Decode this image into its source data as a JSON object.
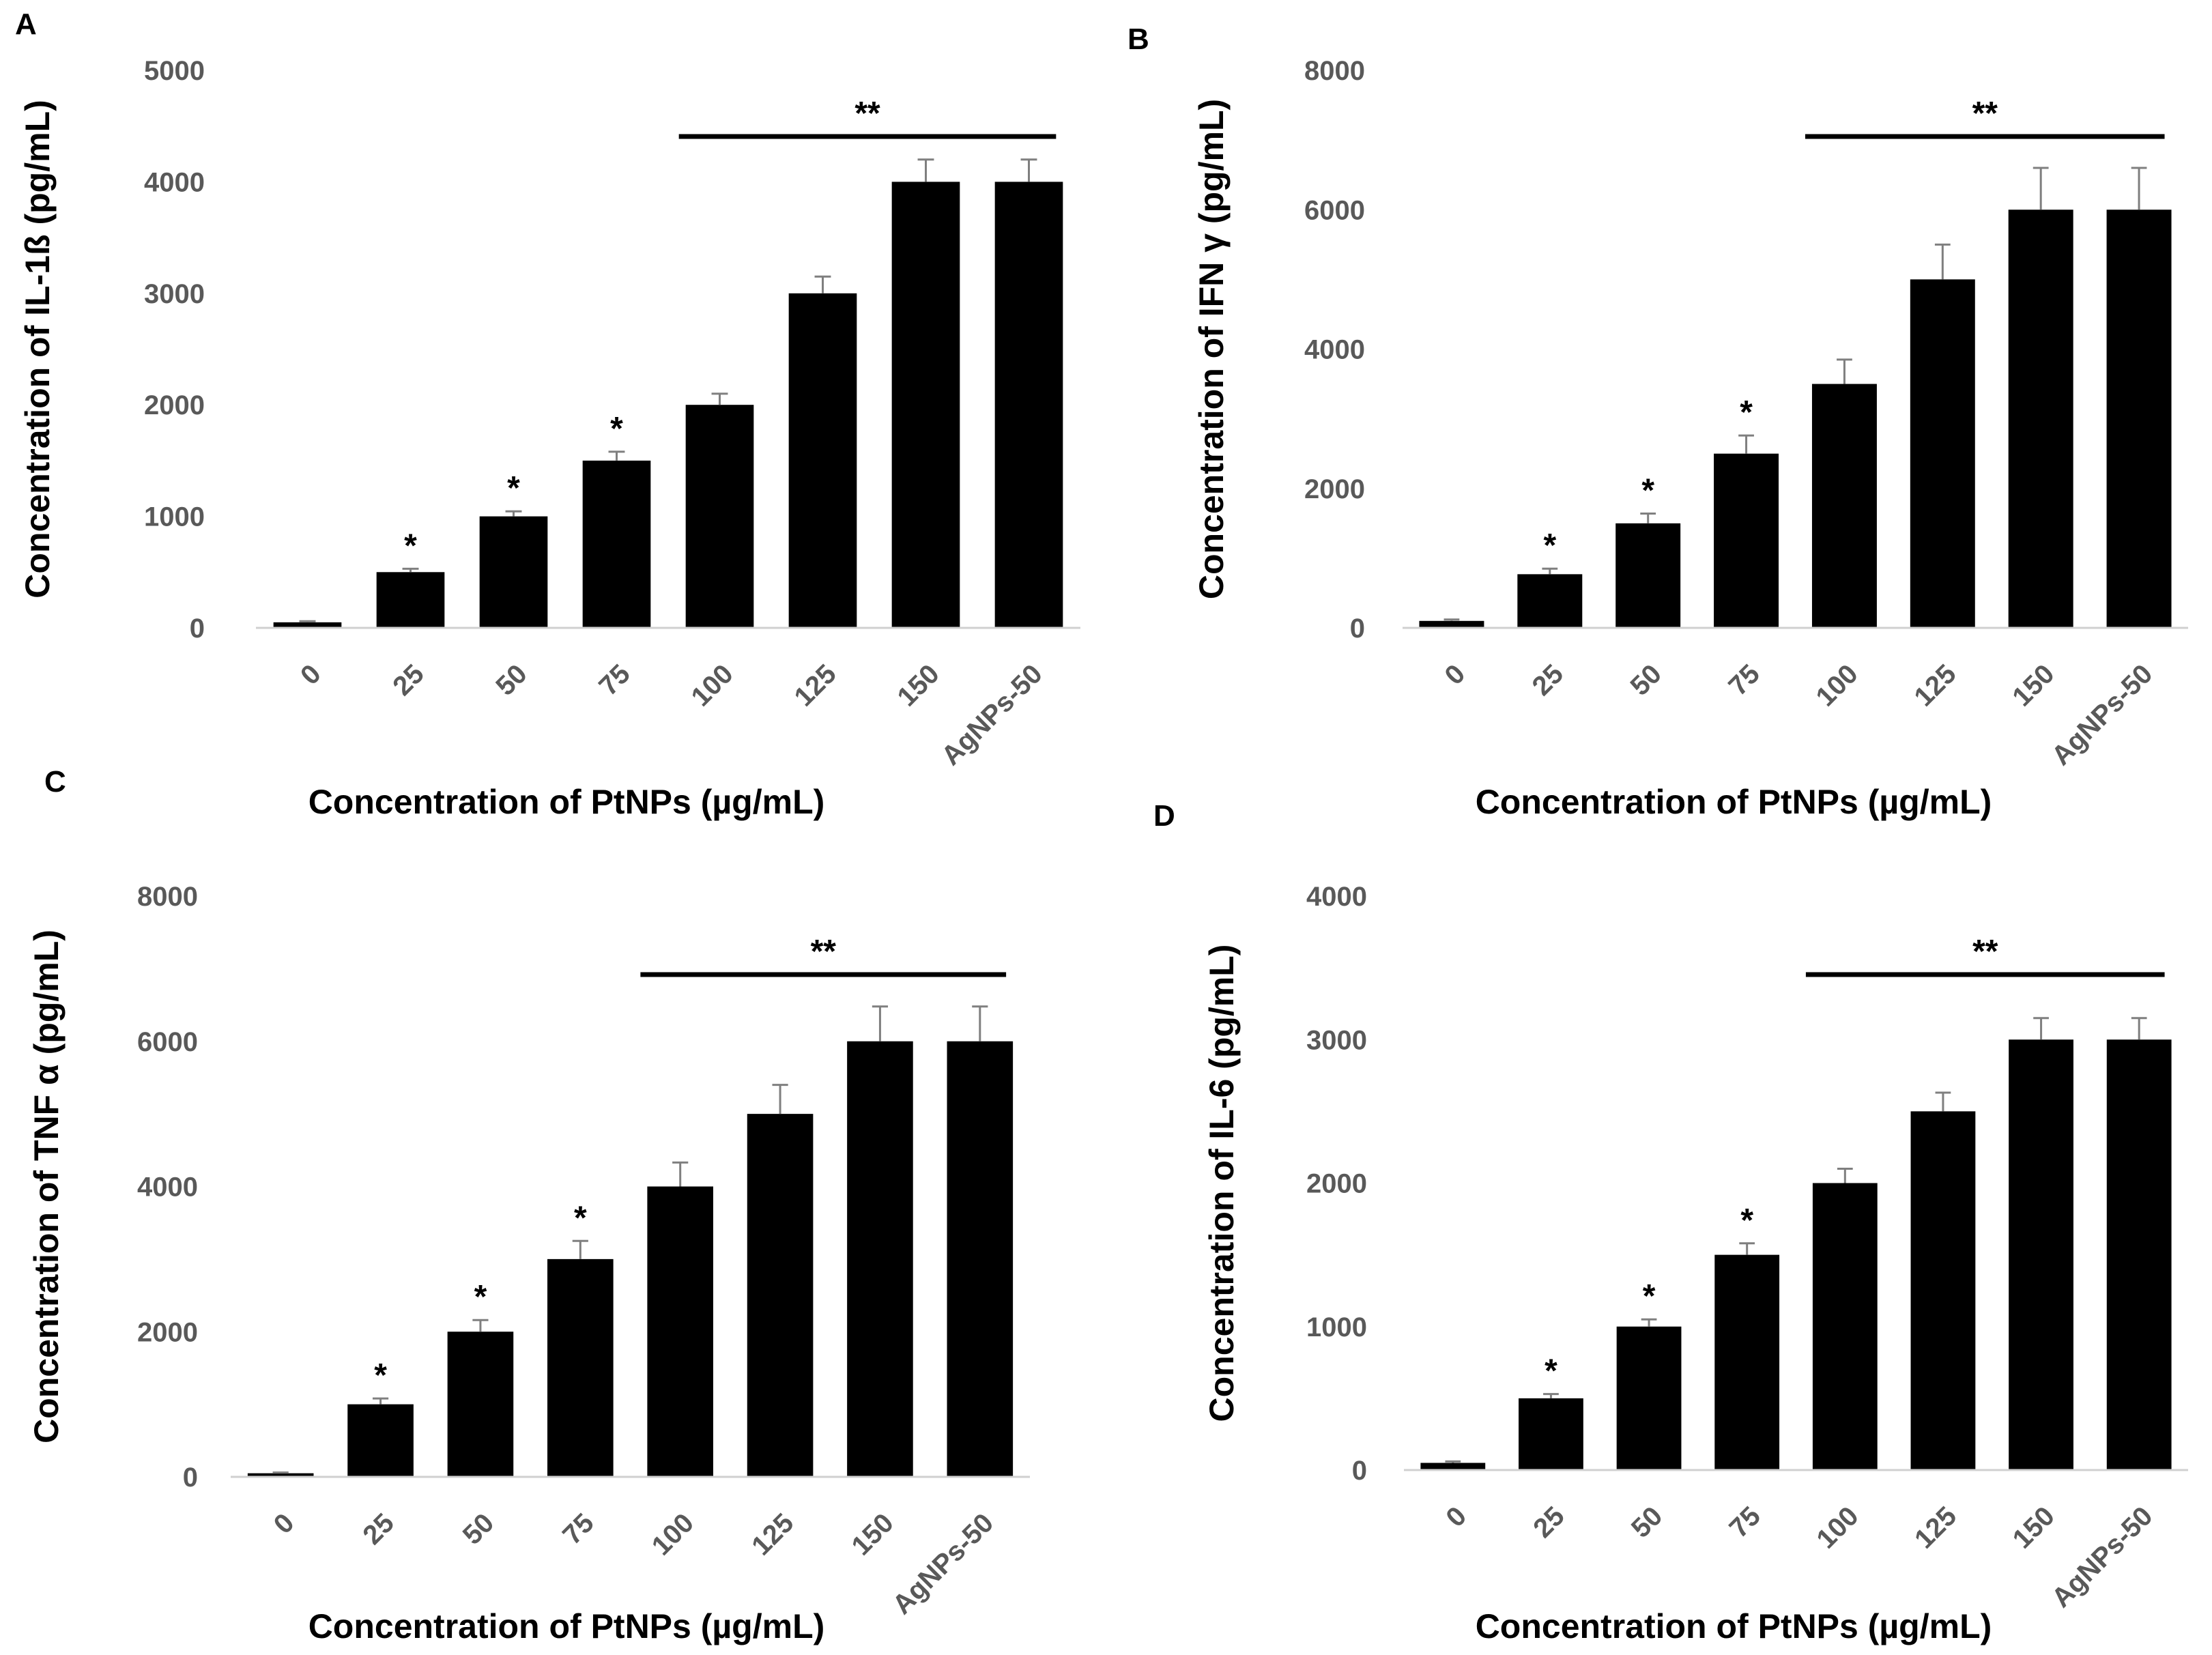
{
  "chart_data": [
    {
      "panel": "A",
      "type": "bar",
      "categories": [
        "0",
        "25",
        "50",
        "75",
        "100",
        "125",
        "150",
        "AgNPs-50"
      ],
      "values": [
        50,
        500,
        1000,
        1500,
        2000,
        3000,
        4000,
        4000
      ],
      "errors": [
        10,
        30,
        45,
        80,
        100,
        150,
        200,
        200
      ],
      "markers": [
        "",
        "*",
        "*",
        "*",
        "",
        "",
        "",
        ""
      ],
      "yticks": [
        0,
        1000,
        2000,
        3000,
        4000,
        5000
      ],
      "ylim": [
        0,
        5000
      ],
      "xlabel": "Concentration of PtNPs (µg/mL)",
      "ylabel": "Concentration of IL-1ß (pg/mL)",
      "significance": {
        "label": "**",
        "from": "100",
        "to": "AgNPs-50"
      }
    },
    {
      "panel": "B",
      "type": "bar",
      "categories": [
        "0",
        "25",
        "50",
        "75",
        "100",
        "125",
        "150",
        "AgNPs-50"
      ],
      "values": [
        100,
        770,
        1500,
        2500,
        3500,
        5000,
        6000,
        6000
      ],
      "errors": [
        20,
        80,
        140,
        260,
        350,
        500,
        600,
        600
      ],
      "markers": [
        "",
        "*",
        "*",
        "*",
        "",
        "",
        "",
        ""
      ],
      "yticks": [
        0,
        2000,
        4000,
        6000,
        8000
      ],
      "ylim": [
        0,
        8000
      ],
      "xlabel": "Concentration of PtNPs (µg/mL)",
      "ylabel": "Concentration of IFN γ (pg/mL)",
      "significance": {
        "label": "**",
        "from": "100",
        "to": "AgNPs-50"
      }
    },
    {
      "panel": "C",
      "type": "bar",
      "categories": [
        "0",
        "25",
        "50",
        "75",
        "100",
        "125",
        "150",
        "AgNPs-50"
      ],
      "values": [
        50,
        1000,
        2000,
        3000,
        4000,
        5000,
        6000,
        6000
      ],
      "errors": [
        10,
        80,
        160,
        250,
        330,
        400,
        480,
        480
      ],
      "markers": [
        "",
        "*",
        "*",
        "*",
        "",
        "",
        "",
        ""
      ],
      "yticks": [
        0,
        2000,
        4000,
        6000,
        8000
      ],
      "ylim": [
        0,
        8000
      ],
      "xlabel": "Concentration of PtNPs (µg/mL)",
      "ylabel": "Concentration of TNF α (pg/mL)",
      "significance": {
        "label": "**",
        "from": "100",
        "to": "AgNPs-50"
      }
    },
    {
      "panel": "D",
      "type": "bar",
      "categories": [
        "0",
        "25",
        "50",
        "75",
        "100",
        "125",
        "150",
        "AgNPs-50"
      ],
      "values": [
        50,
        500,
        1000,
        1500,
        2000,
        2500,
        3000,
        3000
      ],
      "errors": [
        10,
        30,
        50,
        80,
        100,
        130,
        150,
        150
      ],
      "markers": [
        "",
        "*",
        "*",
        "*",
        "",
        "",
        "",
        ""
      ],
      "yticks": [
        0,
        1000,
        2000,
        3000,
        4000
      ],
      "ylim": [
        0,
        4000
      ],
      "xlabel": "Concentration of PtNPs (µg/mL)",
      "ylabel": "Concentration of IL-6 (pg/mL)",
      "significance": {
        "label": "**",
        "from": "100",
        "to": "AgNPs-50"
      }
    }
  ]
}
